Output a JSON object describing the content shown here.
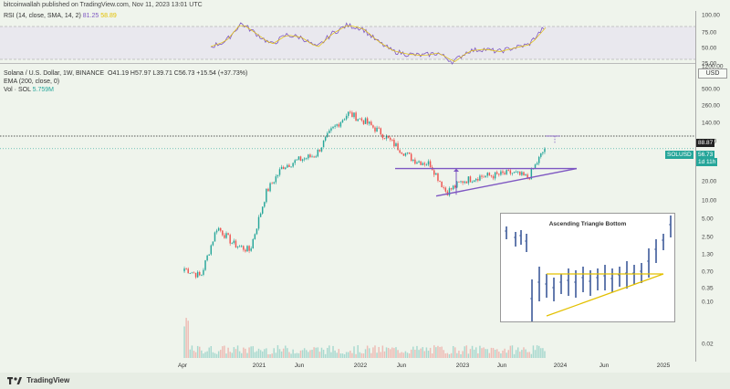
{
  "header": {
    "text": "bitcoinwallah published on TradingView.com, Nov 11, 2023 13:01 UTC"
  },
  "rsi": {
    "label": "RSI (14, close, SMA, 14, 2)",
    "value1": "81.25",
    "value2": "58.89",
    "axis_ticks": [
      "100.00",
      "75.00",
      "50.00",
      "25.00"
    ]
  },
  "legend": {
    "symbol": "Solana / U.S. Dollar, 1W, BINANCE",
    "ohlc": "O41.19  H57.97  L39.71  C56.73  +15.54 (+37.73%)",
    "ema": "EMA (200, close, 0)",
    "vol_label": "Vol · SOL",
    "vol_value": "5.759M"
  },
  "axis": {
    "currency_button": "USD",
    "ticks": [
      "1200.00",
      "500.00",
      "260.00",
      "140.00",
      "70.00",
      "40.00",
      "20.00",
      "10.00",
      "5.00",
      "2.50",
      "1.30",
      "0.70",
      "0.35",
      "0.10",
      "0.02"
    ],
    "level_label": "88.87",
    "symbol_label": "SOLUSD",
    "price_label": "56.73",
    "countdown_label": "1d 11h"
  },
  "xaxis": {
    "labels": [
      "Apr",
      "2021",
      "Jun",
      "2022",
      "Jun",
      "2023",
      "Jun",
      "2024",
      "Jun",
      "2025"
    ]
  },
  "inset": {
    "title": "Ascending Triangle Bottom"
  },
  "footer": {
    "brand": "TradingView"
  },
  "colors": {
    "up": "#26a69a",
    "down": "#ef5350",
    "rsi_line": "#7e57c2",
    "rsi_ma": "#e3c000",
    "trend": "#7e57c2",
    "inset_trend": "#e3c000",
    "inset_bars": "#3d5a99"
  },
  "chart_data": {
    "type": "candlestick",
    "scale": "log",
    "x": [
      "2020-04",
      "2020-06",
      "2020-08",
      "2020-10",
      "2020-12",
      "2021-02",
      "2021-04",
      "2021-06",
      "2021-08",
      "2021-10",
      "2021-11",
      "2022-01",
      "2022-03",
      "2022-05",
      "2022-07",
      "2022-09",
      "2022-11",
      "2023-01",
      "2023-03",
      "2023-05",
      "2023-07",
      "2023-09",
      "2023-11"
    ],
    "close": [
      0.8,
      0.6,
      3.5,
      1.9,
      1.5,
      12,
      30,
      38,
      45,
      110,
      200,
      150,
      100,
      60,
      38,
      33,
      12,
      18,
      21,
      22,
      24,
      20,
      56.73
    ],
    "level": 88.87,
    "rsi": [
      52,
      60,
      88,
      72,
      55,
      70,
      66,
      50,
      72,
      85,
      80,
      60,
      45,
      40,
      38,
      42,
      28,
      45,
      48,
      44,
      50,
      55,
      81.25
    ]
  }
}
